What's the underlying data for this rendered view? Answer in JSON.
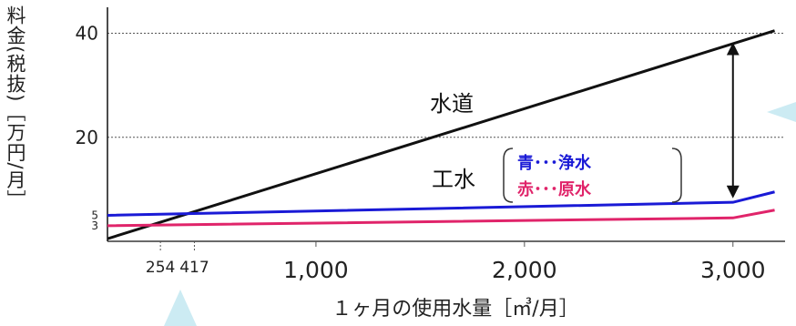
{
  "chart_data": {
    "type": "line",
    "title": "",
    "xlabel": "１ヶ月の使用水量［㎥/月］",
    "ylabel": "料金(税抜)［万円/月］",
    "xlim": [
      0,
      3250
    ],
    "ylim": [
      0,
      45
    ],
    "x_ticks": [
      {
        "value": 254,
        "label": "254"
      },
      {
        "value": 417,
        "label": "417"
      },
      {
        "value": 1000,
        "label": "1,000"
      },
      {
        "value": 2000,
        "label": "2,000"
      },
      {
        "value": 3000,
        "label": "3,000"
      }
    ],
    "y_ticks": [
      {
        "value": 3,
        "label": "3"
      },
      {
        "value": 5,
        "label": "5"
      },
      {
        "value": 20,
        "label": "20"
      },
      {
        "value": 40,
        "label": "40"
      }
    ],
    "grid_y": [
      20,
      40
    ],
    "series": [
      {
        "name": "水道",
        "color": "#111111",
        "x": [
          0,
          3200
        ],
        "y": [
          0.5,
          40.5
        ]
      },
      {
        "name": "青･･･浄水",
        "color": "#1a1ad6",
        "x": [
          0,
          3000,
          3200
        ],
        "y": [
          5,
          7.5,
          9.5
        ]
      },
      {
        "name": "赤･･･原水",
        "color": "#e0246a",
        "x": [
          0,
          3000,
          3200
        ],
        "y": [
          3,
          4.5,
          6
        ]
      }
    ],
    "annotations": {
      "suido_label": "水道",
      "kosui_label": "工水",
      "legend_blue": "青･･･浄水",
      "legend_red": "赤･･･原水",
      "arrow_x": 3000,
      "arrow_from": 9.5,
      "arrow_to": 37
    }
  }
}
